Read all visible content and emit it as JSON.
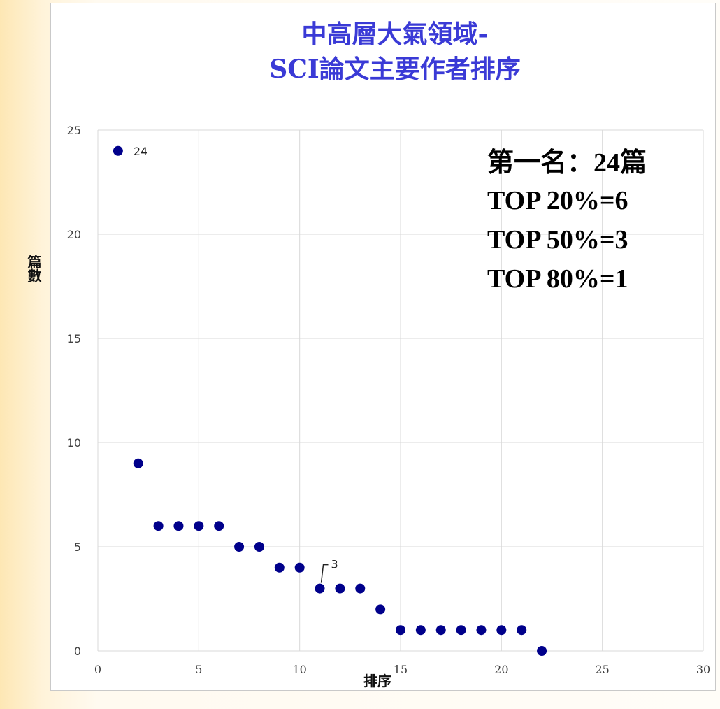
{
  "chart_data": {
    "type": "scatter",
    "title": [
      "中高層大氣領域-",
      "SCI論文主要作者排序"
    ],
    "xlabel": "排序",
    "ylabel": "篇數",
    "xlim": [
      0,
      30
    ],
    "ylim": [
      0,
      25
    ],
    "x_ticks": [
      0,
      5,
      10,
      15,
      20,
      25,
      30
    ],
    "y_ticks": [
      0,
      5,
      10,
      15,
      20,
      25
    ],
    "grid": true,
    "legend": "none",
    "marker_color": "#00008b",
    "x": [
      1,
      2,
      3,
      4,
      5,
      6,
      7,
      8,
      9,
      10,
      11,
      12,
      13,
      14,
      15,
      16,
      17,
      18,
      19,
      20,
      21,
      22
    ],
    "y": [
      24,
      9,
      6,
      6,
      6,
      6,
      5,
      5,
      4,
      4,
      3,
      3,
      3,
      2,
      1,
      1,
      1,
      1,
      1,
      1,
      1,
      0
    ],
    "data_labels": [
      {
        "x": 1,
        "y": 24,
        "text": "24"
      },
      {
        "x": 11,
        "y": 3,
        "text": "3"
      }
    ],
    "annotations": [
      "第一名：24篇",
      "TOP 20%=6",
      "TOP 50%=3",
      "TOP 80%=1"
    ]
  }
}
